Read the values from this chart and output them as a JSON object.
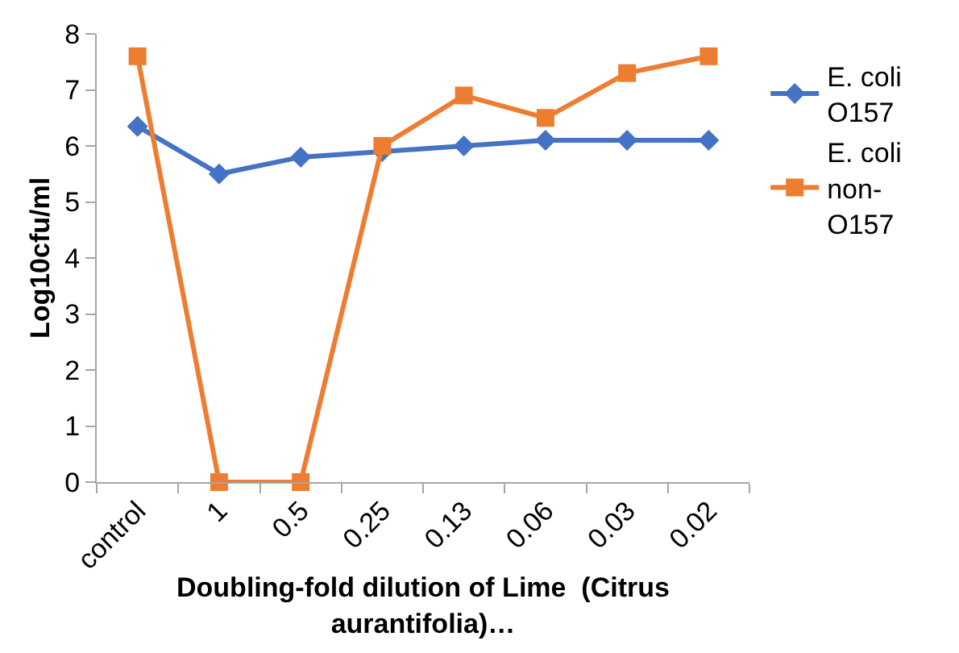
{
  "chart_data": {
    "type": "line",
    "xlabel": "Doubling-fold dilution of Lime  (Citrus aurantifolia)…",
    "ylabel": "Log10cfu/ml",
    "categories": [
      "control",
      "1",
      "0.5",
      "0.25",
      "0.13",
      "0.06",
      "0.03",
      "0.02"
    ],
    "series": [
      {
        "name": "E. coli O157",
        "color": "#4472c4",
        "marker": "diamond",
        "values": [
          6.35,
          5.5,
          5.8,
          5.9,
          6.0,
          6.1,
          6.1,
          6.1
        ]
      },
      {
        "name": "E. coli non-O157",
        "color": "#ed7d31",
        "marker": "square",
        "values": [
          7.6,
          0,
          0,
          6.0,
          6.9,
          6.5,
          7.3,
          7.6
        ]
      }
    ],
    "ylim": [
      0,
      8
    ],
    "yticks": [
      0,
      1,
      2,
      3,
      4,
      5,
      6,
      7,
      8
    ],
    "legend": "right",
    "line_style": "solid"
  }
}
